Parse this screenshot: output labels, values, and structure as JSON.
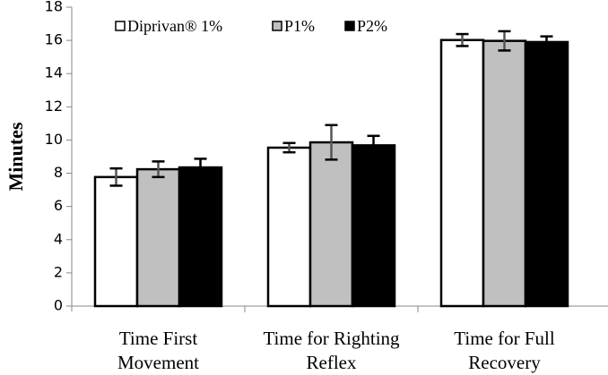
{
  "chart_data": {
    "type": "bar",
    "title": "",
    "xlabel": "",
    "ylabel": "Minutes",
    "ylim": [
      0,
      18
    ],
    "yticks": [
      "0",
      "2",
      "4",
      "6",
      "8",
      "10",
      "12",
      "14",
      "16",
      "18"
    ],
    "grid": false,
    "legend_position": "top-left",
    "categories": [
      [
        "Time First",
        "Movement"
      ],
      [
        "Time for Righting",
        "Reflex"
      ],
      [
        "Time for Full",
        "Recovery"
      ]
    ],
    "series": [
      {
        "name": "Diprivan® 1%",
        "color": "#ffffff",
        "values": [
          7.77,
          9.54,
          16.02
        ],
        "errors": [
          0.52,
          0.28,
          0.36
        ]
      },
      {
        "name": "P1%",
        "color": "#c0c0c0",
        "values": [
          8.24,
          9.86,
          15.97
        ],
        "errors": [
          0.47,
          1.04,
          0.58
        ]
      },
      {
        "name": "P2%",
        "color": "#000000",
        "values": [
          8.35,
          9.68,
          15.9
        ],
        "errors": [
          0.52,
          0.57,
          0.34
        ]
      }
    ]
  }
}
